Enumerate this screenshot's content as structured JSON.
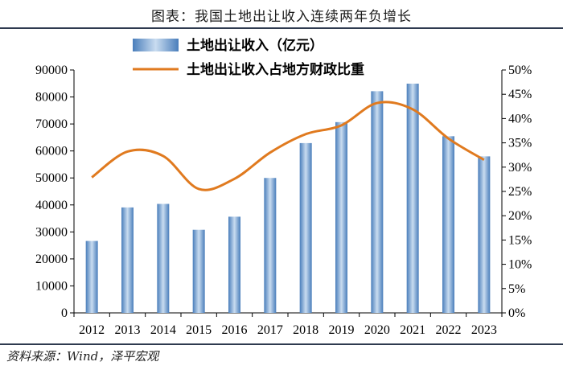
{
  "header": {
    "title": "图表：我国土地出让收入连续两年负增长"
  },
  "footer": {
    "source": "资料来源：Wind，泽平宏观"
  },
  "colors": {
    "bar": "#4a7ebb",
    "bar_light": "#c9dcf0",
    "line": "#e07a1f",
    "axis": "#000000"
  },
  "chart_data": {
    "type": "bar+line",
    "title": "图表：我国土地出让收入连续两年负增长",
    "categories": [
      "2012",
      "2013",
      "2014",
      "2015",
      "2016",
      "2017",
      "2018",
      "2019",
      "2020",
      "2021",
      "2022",
      "2023"
    ],
    "series": [
      {
        "name": "土地出让收入（亿元）",
        "type": "bar",
        "axis": "left",
        "values": [
          26652,
          39073,
          40385,
          30784,
          35640,
          49997,
          62911,
          70679,
          82137,
          84938,
          65463,
          57996
        ]
      },
      {
        "name": "土地出让收入占地方财政比重",
        "type": "line",
        "axis": "right",
        "values": [
          0.279,
          0.332,
          0.323,
          0.255,
          0.276,
          0.33,
          0.368,
          0.386,
          0.432,
          0.419,
          0.359,
          0.315
        ]
      }
    ],
    "y_left": {
      "min": 0,
      "max": 90000,
      "step": 10000,
      "ticks": [
        "0",
        "10000",
        "20000",
        "30000",
        "40000",
        "50000",
        "60000",
        "70000",
        "80000",
        "90000"
      ]
    },
    "y_right": {
      "min": 0,
      "max": 0.5,
      "step": 0.05,
      "ticks": [
        "0%",
        "5%",
        "10%",
        "15%",
        "20%",
        "25%",
        "30%",
        "35%",
        "40%",
        "45%",
        "50%"
      ]
    },
    "legend": {
      "position": "top-left"
    }
  }
}
